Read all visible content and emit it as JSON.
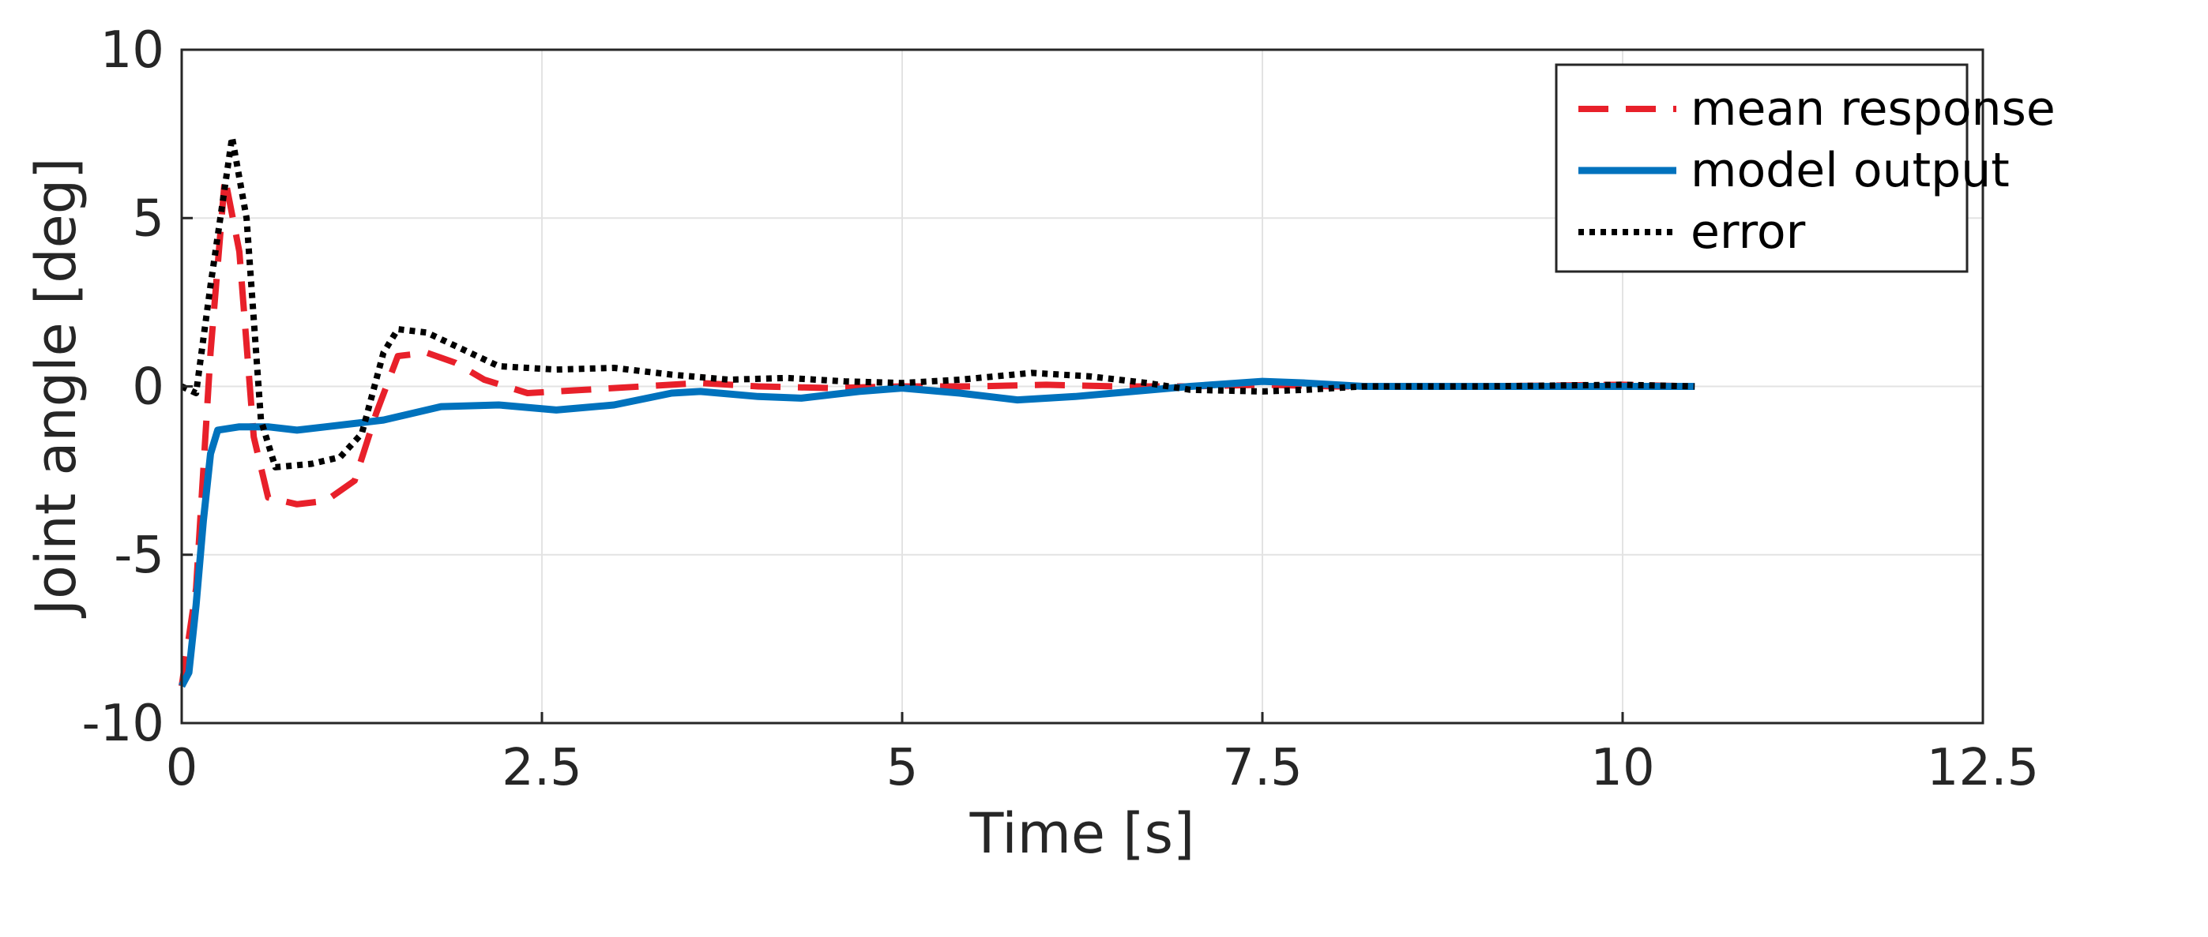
{
  "chart_data": {
    "type": "line",
    "title": "",
    "xlabel": "Time [s]",
    "ylabel": "Joint angle [deg]",
    "xlim": [
      0,
      12.5
    ],
    "ylim": [
      -10,
      10
    ],
    "xticks": [
      0,
      2.5,
      5,
      7.5,
      10,
      12.5
    ],
    "xtick_labels": [
      "0",
      "2.5",
      "5",
      "7.5",
      "10",
      "12.5"
    ],
    "yticks": [
      -10,
      -5,
      0,
      5,
      10
    ],
    "ytick_labels": [
      "-10",
      "-5",
      "0",
      "5",
      "10"
    ],
    "grid": true,
    "legend_position": "top-right",
    "series": [
      {
        "name": "mean response",
        "color": "#e8202a",
        "style": "dashed",
        "points": [
          [
            0,
            -8.9
          ],
          [
            0.1,
            -6.0
          ],
          [
            0.2,
            1.0
          ],
          [
            0.3,
            6.2
          ],
          [
            0.4,
            4.0
          ],
          [
            0.5,
            -1.5
          ],
          [
            0.6,
            -3.3
          ],
          [
            0.8,
            -3.5
          ],
          [
            1.0,
            -3.4
          ],
          [
            1.2,
            -2.8
          ],
          [
            1.35,
            -0.8
          ],
          [
            1.5,
            0.9
          ],
          [
            1.7,
            1.0
          ],
          [
            1.9,
            0.7
          ],
          [
            2.1,
            0.2
          ],
          [
            2.4,
            -0.2
          ],
          [
            2.8,
            -0.1
          ],
          [
            3.2,
            0.0
          ],
          [
            3.6,
            0.1
          ],
          [
            4.0,
            0.0
          ],
          [
            4.5,
            -0.05
          ],
          [
            5.0,
            0.0
          ],
          [
            5.5,
            0.0
          ],
          [
            6.0,
            0.05
          ],
          [
            6.5,
            0.0
          ],
          [
            7.0,
            0.0
          ],
          [
            7.5,
            0.05
          ],
          [
            8.0,
            0.0
          ],
          [
            9.0,
            0.0
          ],
          [
            10.0,
            0.05
          ],
          [
            10.5,
            0.0
          ]
        ]
      },
      {
        "name": "model output",
        "color": "#0072bd",
        "style": "solid",
        "points": [
          [
            0,
            -8.9
          ],
          [
            0.05,
            -8.5
          ],
          [
            0.1,
            -6.5
          ],
          [
            0.15,
            -4.0
          ],
          [
            0.2,
            -2.0
          ],
          [
            0.25,
            -1.3
          ],
          [
            0.4,
            -1.2
          ],
          [
            0.6,
            -1.2
          ],
          [
            0.8,
            -1.3
          ],
          [
            1.0,
            -1.2
          ],
          [
            1.4,
            -1.0
          ],
          [
            1.8,
            -0.6
          ],
          [
            2.2,
            -0.55
          ],
          [
            2.6,
            -0.7
          ],
          [
            3.0,
            -0.55
          ],
          [
            3.4,
            -0.2
          ],
          [
            3.6,
            -0.15
          ],
          [
            4.0,
            -0.3
          ],
          [
            4.3,
            -0.35
          ],
          [
            4.7,
            -0.15
          ],
          [
            5.0,
            -0.05
          ],
          [
            5.4,
            -0.2
          ],
          [
            5.8,
            -0.4
          ],
          [
            6.2,
            -0.3
          ],
          [
            6.6,
            -0.15
          ],
          [
            7.0,
            0.0
          ],
          [
            7.5,
            0.15
          ],
          [
            7.8,
            0.1
          ],
          [
            8.2,
            0.0
          ],
          [
            9.0,
            0.0
          ],
          [
            10.0,
            0.0
          ],
          [
            10.5,
            0.0
          ]
        ]
      },
      {
        "name": "error",
        "color": "#000000",
        "style": "dotted",
        "points": [
          [
            0,
            0.0
          ],
          [
            0.1,
            -0.2
          ],
          [
            0.2,
            3.0
          ],
          [
            0.35,
            7.4
          ],
          [
            0.45,
            5.0
          ],
          [
            0.55,
            -1.0
          ],
          [
            0.65,
            -2.4
          ],
          [
            0.9,
            -2.3
          ],
          [
            1.1,
            -2.1
          ],
          [
            1.25,
            -1.4
          ],
          [
            1.4,
            1.0
          ],
          [
            1.5,
            1.7
          ],
          [
            1.7,
            1.6
          ],
          [
            1.9,
            1.2
          ],
          [
            2.2,
            0.6
          ],
          [
            2.6,
            0.5
          ],
          [
            3.0,
            0.55
          ],
          [
            3.4,
            0.35
          ],
          [
            3.8,
            0.2
          ],
          [
            4.2,
            0.25
          ],
          [
            4.6,
            0.15
          ],
          [
            5.0,
            0.1
          ],
          [
            5.4,
            0.2
          ],
          [
            5.9,
            0.4
          ],
          [
            6.3,
            0.3
          ],
          [
            6.7,
            0.1
          ],
          [
            7.0,
            -0.1
          ],
          [
            7.5,
            -0.15
          ],
          [
            7.8,
            -0.1
          ],
          [
            8.2,
            0.0
          ],
          [
            9.0,
            0.0
          ],
          [
            10.0,
            0.05
          ],
          [
            10.5,
            0.0
          ]
        ]
      }
    ]
  }
}
